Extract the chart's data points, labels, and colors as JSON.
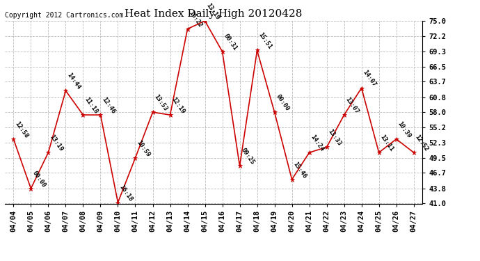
{
  "title": "Heat Index Daily High 20120428",
  "copyright": "Copyright 2012 Cartronics.com",
  "dates": [
    "04/04",
    "04/05",
    "04/06",
    "04/07",
    "04/08",
    "04/09",
    "04/10",
    "04/11",
    "04/12",
    "04/13",
    "04/14",
    "04/15",
    "04/16",
    "04/17",
    "04/18",
    "04/19",
    "04/20",
    "04/21",
    "04/22",
    "04/23",
    "04/24",
    "04/25",
    "04/26",
    "04/27"
  ],
  "values": [
    53.0,
    43.8,
    50.5,
    62.0,
    57.5,
    57.5,
    41.2,
    49.5,
    58.0,
    57.5,
    73.5,
    75.0,
    69.3,
    48.0,
    69.5,
    58.0,
    45.5,
    50.5,
    51.5,
    57.5,
    62.5,
    50.5,
    53.0,
    50.5
  ],
  "labels": [
    "12:58",
    "00:00",
    "13:19",
    "14:44",
    "11:18",
    "12:46",
    "16:18",
    "10:59",
    "13:53",
    "12:19",
    "16:22",
    "13:19",
    "00:31",
    "09:25",
    "15:51",
    "00:00",
    "15:46",
    "14:24",
    "13:33",
    "13:07",
    "14:07",
    "13:11",
    "10:39",
    "12:52"
  ],
  "ylim": [
    41.0,
    75.0
  ],
  "yticks": [
    41.0,
    43.8,
    46.7,
    49.5,
    52.3,
    55.2,
    58.0,
    60.8,
    63.7,
    66.5,
    69.3,
    72.2,
    75.0
  ],
  "line_color": "#cc0000",
  "marker_color": "#cc0000",
  "bg_color": "#ffffff",
  "grid_color": "#bbbbbb",
  "title_fontsize": 11,
  "label_fontsize": 6.5,
  "copyright_fontsize": 7,
  "tick_fontsize": 7.5
}
